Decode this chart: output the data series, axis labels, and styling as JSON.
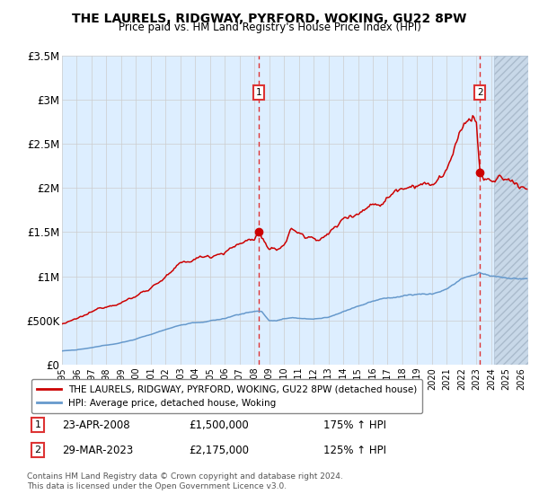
{
  "title": "THE LAURELS, RIDGWAY, PYRFORD, WOKING, GU22 8PW",
  "subtitle": "Price paid vs. HM Land Registry's House Price Index (HPI)",
  "ylim": [
    0,
    3500000
  ],
  "yticks": [
    0,
    500000,
    1000000,
    1500000,
    2000000,
    2500000,
    3000000,
    3500000
  ],
  "ytick_labels": [
    "£0",
    "£500K",
    "£1M",
    "£1.5M",
    "£2M",
    "£2.5M",
    "£3M",
    "£3.5M"
  ],
  "xlim_start": 1995.0,
  "xlim_end": 2026.5,
  "sale1_x": 2008.31,
  "sale1_y": 1500000,
  "sale1_label": "1",
  "sale1_date": "23-APR-2008",
  "sale1_price": "£1,500,000",
  "sale1_hpi": "175% ↑ HPI",
  "sale2_x": 2023.24,
  "sale2_y": 2175000,
  "sale2_label": "2",
  "sale2_date": "29-MAR-2023",
  "sale2_price": "£2,175,000",
  "sale2_hpi": "125% ↑ HPI",
  "legend_line1": "THE LAURELS, RIDGWAY, PYRFORD, WOKING, GU22 8PW (detached house)",
  "legend_line2": "HPI: Average price, detached house, Woking",
  "footer1": "Contains HM Land Registry data © Crown copyright and database right 2024.",
  "footer2": "This data is licensed under the Open Government Licence v3.0.",
  "red_color": "#cc0000",
  "blue_color": "#6699cc",
  "bg_plot_color": "#ddeeff",
  "grid_color": "#cccccc",
  "dashed_color": "#dd3333",
  "hatch_start": 2024.17
}
